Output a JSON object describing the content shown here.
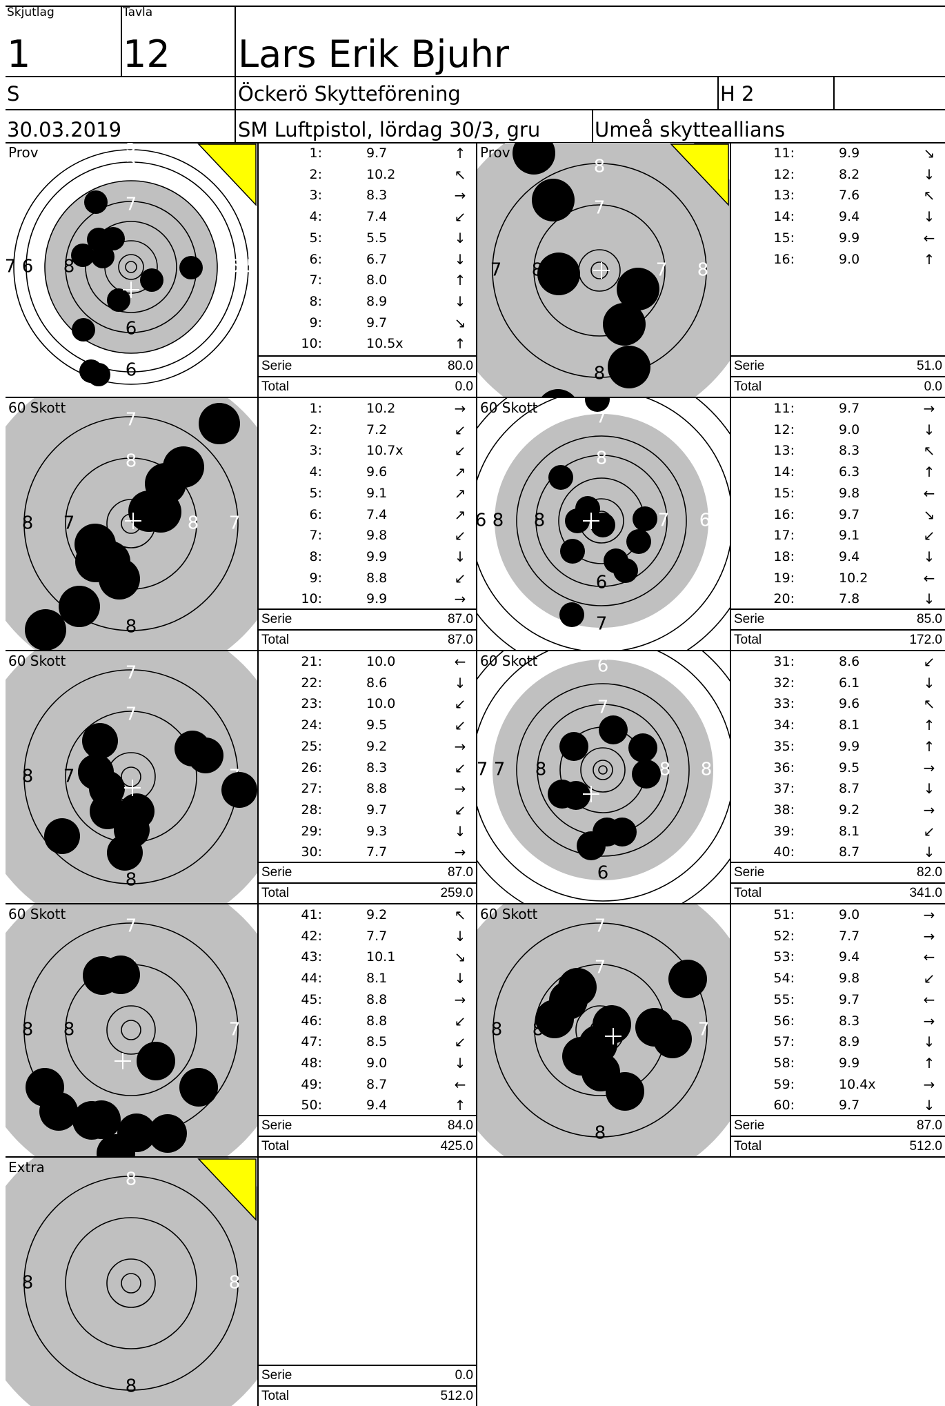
{
  "header": {
    "skjutlag_label": "Skjutlag",
    "tavla_label": "Tavla",
    "skjutlag": "1",
    "tavla": "12",
    "name": "Lars Erik Bjuhr",
    "klass": "S",
    "club": "Öckerö Skytteförening",
    "heat": "H 2",
    "date": "30.03.2019",
    "competition": "SM Luftpistol, lördag 30/3, gru",
    "team": "Umeå skytteallians"
  },
  "labels": {
    "serie": "Serie",
    "total": "Total"
  },
  "blocks": [
    {
      "left": {
        "title": "Prov",
        "rings_text": [
          "5",
          "6",
          "7",
          "8",
          "6",
          "5",
          "7",
          "5"
        ],
        "shots": [
          {
            "n": "1:",
            "v": "9.7",
            "a": "↑"
          },
          {
            "n": "2:",
            "v": "10.2",
            "a": "↖"
          },
          {
            "n": "3:",
            "v": "8.3",
            "a": "→"
          },
          {
            "n": "4:",
            "v": "7.4",
            "a": "↙"
          },
          {
            "n": "5:",
            "v": "5.5",
            "a": "↓"
          },
          {
            "n": "6:",
            "v": "6.7",
            "a": "↓"
          },
          {
            "n": "7:",
            "v": "8.0",
            "a": "↑"
          },
          {
            "n": "8:",
            "v": "8.9",
            "a": "↓"
          },
          {
            "n": "9:",
            "v": "9.7",
            "a": "↘"
          },
          {
            "n": "10:",
            "v": "10.5x",
            "a": "↑"
          }
        ],
        "serie": "80.0",
        "total": "0.0"
      },
      "right": {
        "title": "Prov",
        "shots": [
          {
            "n": "11:",
            "v": "9.9",
            "a": "↘"
          },
          {
            "n": "12:",
            "v": "8.2",
            "a": "↓"
          },
          {
            "n": "13:",
            "v": "7.6",
            "a": "↖"
          },
          {
            "n": "14:",
            "v": "9.4",
            "a": "↓"
          },
          {
            "n": "15:",
            "v": "9.9",
            "a": "←"
          },
          {
            "n": "16:",
            "v": "9.0",
            "a": "↑"
          }
        ],
        "serie": "51.0",
        "total": "0.0"
      }
    },
    {
      "left": {
        "title": "60 Skott",
        "shots": [
          {
            "n": "1:",
            "v": "10.2",
            "a": "→"
          },
          {
            "n": "2:",
            "v": "7.2",
            "a": "↙"
          },
          {
            "n": "3:",
            "v": "10.7x",
            "a": "↙"
          },
          {
            "n": "4:",
            "v": "9.6",
            "a": "↗"
          },
          {
            "n": "5:",
            "v": "9.1",
            "a": "↗"
          },
          {
            "n": "6:",
            "v": "7.4",
            "a": "↗"
          },
          {
            "n": "7:",
            "v": "9.8",
            "a": "↙"
          },
          {
            "n": "8:",
            "v": "9.9",
            "a": "↓"
          },
          {
            "n": "9:",
            "v": "8.8",
            "a": "↙"
          },
          {
            "n": "10:",
            "v": "9.9",
            "a": "→"
          }
        ],
        "serie": "87.0",
        "total": "87.0"
      },
      "right": {
        "title": "60 Skott",
        "shots": [
          {
            "n": "11:",
            "v": "9.7",
            "a": "→"
          },
          {
            "n": "12:",
            "v": "9.0",
            "a": "↓"
          },
          {
            "n": "13:",
            "v": "8.3",
            "a": "↖"
          },
          {
            "n": "14:",
            "v": "6.3",
            "a": "↑"
          },
          {
            "n": "15:",
            "v": "9.8",
            "a": "←"
          },
          {
            "n": "16:",
            "v": "9.7",
            "a": "↘"
          },
          {
            "n": "17:",
            "v": "9.1",
            "a": "↙"
          },
          {
            "n": "18:",
            "v": "9.4",
            "a": "↓"
          },
          {
            "n": "19:",
            "v": "10.2",
            "a": "←"
          },
          {
            "n": "20:",
            "v": "7.8",
            "a": "↓"
          }
        ],
        "serie": "85.0",
        "total": "172.0"
      }
    },
    {
      "left": {
        "title": "60 Skott",
        "shots": [
          {
            "n": "21:",
            "v": "10.0",
            "a": "←"
          },
          {
            "n": "22:",
            "v": "8.6",
            "a": "↓"
          },
          {
            "n": "23:",
            "v": "10.0",
            "a": "↙"
          },
          {
            "n": "24:",
            "v": "9.5",
            "a": "↙"
          },
          {
            "n": "25:",
            "v": "9.2",
            "a": "→"
          },
          {
            "n": "26:",
            "v": "8.3",
            "a": "↙"
          },
          {
            "n": "27:",
            "v": "8.8",
            "a": "→"
          },
          {
            "n": "28:",
            "v": "9.7",
            "a": "↙"
          },
          {
            "n": "29:",
            "v": "9.3",
            "a": "↓"
          },
          {
            "n": "30:",
            "v": "7.7",
            "a": "→"
          }
        ],
        "serie": "87.0",
        "total": "259.0"
      },
      "right": {
        "title": "60 Skott",
        "shots": [
          {
            "n": "31:",
            "v": "8.6",
            "a": "↙"
          },
          {
            "n": "32:",
            "v": "6.1",
            "a": "↓"
          },
          {
            "n": "33:",
            "v": "9.6",
            "a": "↖"
          },
          {
            "n": "34:",
            "v": "8.1",
            "a": "↑"
          },
          {
            "n": "35:",
            "v": "9.9",
            "a": "↑"
          },
          {
            "n": "36:",
            "v": "9.5",
            "a": "→"
          },
          {
            "n": "37:",
            "v": "8.7",
            "a": "↓"
          },
          {
            "n": "38:",
            "v": "9.2",
            "a": "→"
          },
          {
            "n": "39:",
            "v": "8.1",
            "a": "↙"
          },
          {
            "n": "40:",
            "v": "8.7",
            "a": "↓"
          }
        ],
        "serie": "82.0",
        "total": "341.0"
      }
    },
    {
      "left": {
        "title": "60 Skott",
        "shots": [
          {
            "n": "41:",
            "v": "9.2",
            "a": "↖"
          },
          {
            "n": "42:",
            "v": "7.7",
            "a": "↓"
          },
          {
            "n": "43:",
            "v": "10.1",
            "a": "↘"
          },
          {
            "n": "44:",
            "v": "8.1",
            "a": "↓"
          },
          {
            "n": "45:",
            "v": "8.8",
            "a": "→"
          },
          {
            "n": "46:",
            "v": "8.8",
            "a": "↙"
          },
          {
            "n": "47:",
            "v": "8.5",
            "a": "↙"
          },
          {
            "n": "48:",
            "v": "9.0",
            "a": "↓"
          },
          {
            "n": "49:",
            "v": "8.7",
            "a": "←"
          },
          {
            "n": "50:",
            "v": "9.4",
            "a": "↑"
          }
        ],
        "serie": "84.0",
        "total": "425.0"
      },
      "right": {
        "title": "60 Skott",
        "shots": [
          {
            "n": "51:",
            "v": "9.0",
            "a": "→"
          },
          {
            "n": "52:",
            "v": "7.7",
            "a": "→"
          },
          {
            "n": "53:",
            "v": "9.4",
            "a": "←"
          },
          {
            "n": "54:",
            "v": "9.8",
            "a": "↙"
          },
          {
            "n": "55:",
            "v": "9.7",
            "a": "←"
          },
          {
            "n": "56:",
            "v": "8.3",
            "a": "→"
          },
          {
            "n": "57:",
            "v": "8.9",
            "a": "↓"
          },
          {
            "n": "58:",
            "v": "9.9",
            "a": "↑"
          },
          {
            "n": "59:",
            "v": "10.4x",
            "a": "→"
          },
          {
            "n": "60:",
            "v": "9.7",
            "a": "↓"
          }
        ],
        "serie": "87.0",
        "total": "512.0"
      }
    },
    {
      "left": {
        "title": "Extra",
        "shots": [],
        "serie": "0.0",
        "total": "512.0"
      }
    }
  ],
  "ring_numbers": {
    "prov1": [
      "5",
      "6",
      "5",
      "6",
      "7",
      "8",
      "7",
      "6",
      "5",
      "7",
      "5"
    ],
    "prov2": [
      "8",
      "7",
      "8",
      "8",
      "7",
      "8",
      "7"
    ],
    "s1": [
      "7",
      "8",
      "7",
      "8",
      "8",
      "7",
      "8",
      "7"
    ],
    "s2": [
      "7",
      "8",
      "6",
      "7",
      "8",
      "8",
      "7",
      "6",
      "7",
      "6"
    ],
    "s3": [
      "7",
      "8",
      "7",
      "8",
      "7",
      "7"
    ],
    "s4": [
      "6",
      "7",
      "8",
      "6",
      "7",
      "8",
      "8",
      "7",
      "6",
      "7",
      "6"
    ],
    "s5": [
      "7",
      "8",
      "7",
      "8",
      "7",
      "8"
    ],
    "s6": [
      "7",
      "8",
      "7",
      "8",
      "7",
      "8",
      "7"
    ],
    "extra": [
      "8",
      "8",
      "8",
      "8"
    ]
  },
  "colors": {
    "gray": "#c0c0c0",
    "yellow": "#ffff00"
  }
}
